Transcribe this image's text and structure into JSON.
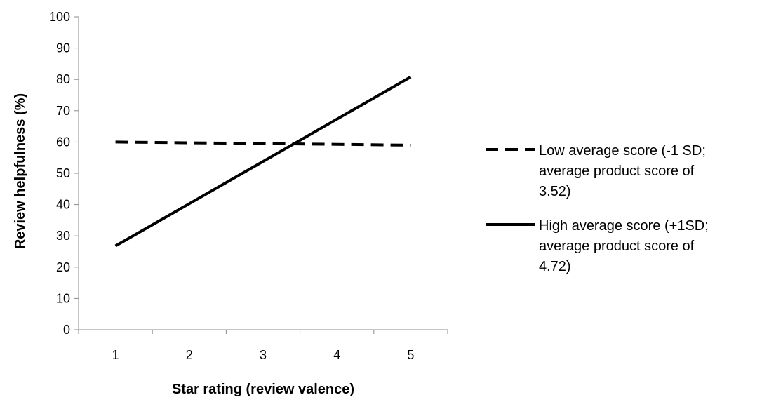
{
  "chart_data": {
    "type": "line",
    "title": "",
    "xlabel": "Star rating (review valence)",
    "ylabel": "Review helpfulness (%)",
    "x": [
      1,
      2,
      3,
      4,
      5
    ],
    "ylim": [
      0,
      100
    ],
    "y_ticks": [
      "0",
      "10",
      "20",
      "30",
      "40",
      "50",
      "60",
      "70",
      "80",
      "90",
      "100"
    ],
    "x_ticks": [
      "1",
      "2",
      "3",
      "4",
      "5"
    ],
    "grid": false,
    "legend_position": "right",
    "series": [
      {
        "name_lines": [
          "Low average score (-1 SD;",
          "average product score of",
          "3.52)"
        ],
        "line_style": "dashed",
        "color": "#000000",
        "values": [
          60.0,
          59.75,
          59.5,
          59.25,
          59.0
        ]
      },
      {
        "name_lines": [
          "High average score (+1SD;",
          "average product score of",
          "4.72)"
        ],
        "line_style": "solid",
        "color": "#000000",
        "values": [
          26.8,
          40.3,
          53.8,
          67.3,
          80.8
        ]
      }
    ]
  }
}
